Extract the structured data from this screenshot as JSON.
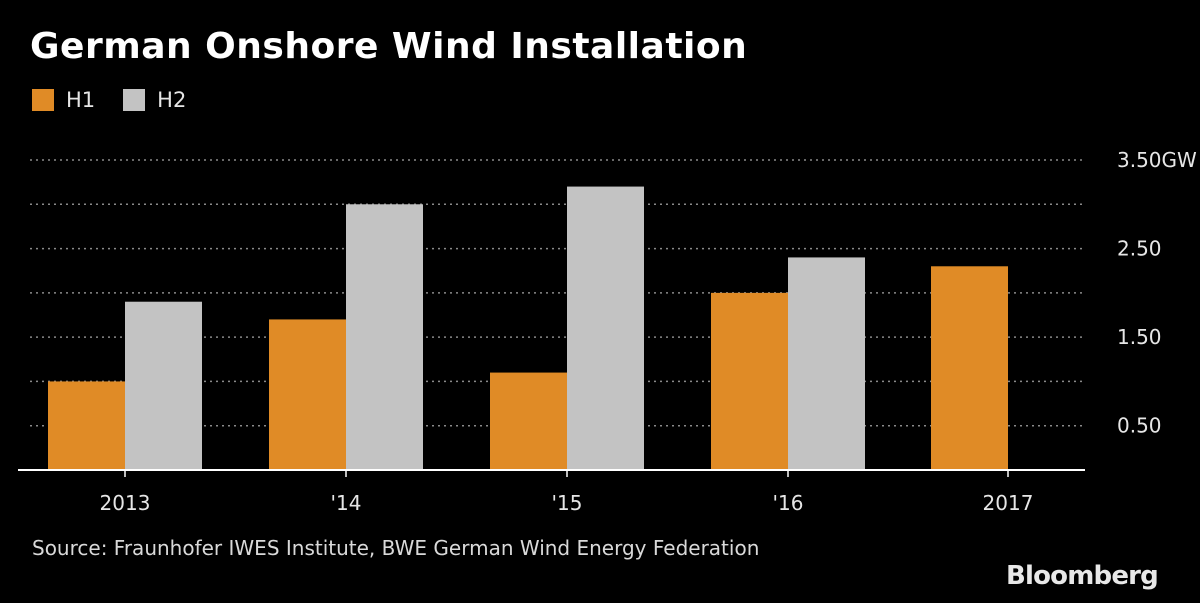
{
  "title": "German Onshore Wind Installation",
  "legend": [
    {
      "label": "H1",
      "color": "#E08B26"
    },
    {
      "label": "H2",
      "color": "#C3C3C3"
    }
  ],
  "chart_data": {
    "type": "bar",
    "categories": [
      "2013",
      "'14",
      "'15",
      "'16",
      "2017"
    ],
    "series": [
      {
        "name": "H1",
        "color": "#E08B26",
        "values": [
          1.0,
          1.7,
          1.1,
          2.0,
          2.3
        ]
      },
      {
        "name": "H2",
        "color": "#C3C3C3",
        "values": [
          1.9,
          3.0,
          3.2,
          2.4,
          null
        ]
      }
    ],
    "y_ticks": [
      {
        "value": 3.5,
        "label": "3.50GW"
      },
      {
        "value": 2.5,
        "label": "2.50"
      },
      {
        "value": 1.5,
        "label": "1.50"
      },
      {
        "value": 0.5,
        "label": "0.50"
      }
    ],
    "gridlines": [
      0.5,
      1.0,
      1.5,
      2.0,
      2.5,
      3.0,
      3.5
    ],
    "ylim": [
      0,
      3.5
    ],
    "xlabel": "",
    "ylabel": "",
    "grid": true,
    "legend_position": "top-left"
  },
  "source": "Source: Fraunhofer IWES Institute, BWE German Wind Energy Federation",
  "brand": "Bloomberg"
}
